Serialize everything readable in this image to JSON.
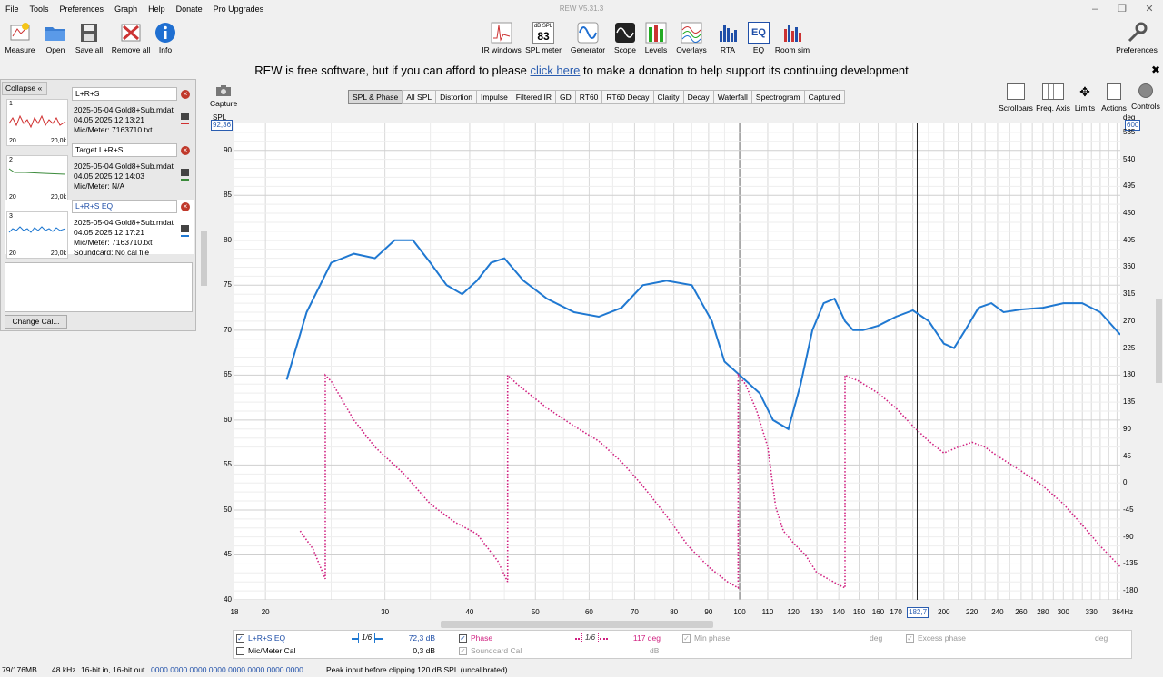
{
  "app_title": "REW V5.31.3",
  "menu": [
    "File",
    "Tools",
    "Preferences",
    "Graph",
    "Help",
    "Donate",
    "Pro Upgrades"
  ],
  "toolbar_left": [
    {
      "label": "Measure",
      "icon": "measure-icon"
    },
    {
      "label": "Open",
      "icon": "folder-icon"
    },
    {
      "label": "Save all",
      "icon": "save-icon"
    },
    {
      "label": "Remove all",
      "icon": "remove-all-icon"
    },
    {
      "label": "Info",
      "icon": "info-icon"
    }
  ],
  "toolbar_center": [
    {
      "label": "IR windows",
      "icon": "ir-windows-icon"
    },
    {
      "label": "SPL meter",
      "icon": "spl-meter-icon",
      "badge_top": "dB SPL",
      "badge_value": "83"
    },
    {
      "label": "Generator",
      "icon": "generator-icon"
    },
    {
      "label": "Scope",
      "icon": "scope-icon"
    },
    {
      "label": "Levels",
      "icon": "levels-icon"
    },
    {
      "label": "Overlays",
      "icon": "overlays-icon"
    },
    {
      "label": "RTA",
      "icon": "rta-icon"
    },
    {
      "label": "EQ",
      "icon": "eq-icon",
      "badge_value": "EQ"
    },
    {
      "label": "Room sim",
      "icon": "room-sim-icon"
    }
  ],
  "preferences_label": "Preferences",
  "donate": {
    "before": "REW is free software, but if you can afford to please ",
    "link": "click here",
    "after": " to make a donation to help support its continuing development"
  },
  "collapse_label": "Collapse",
  "collapse_glyph": "«",
  "measurements": [
    {
      "num": "1",
      "name": "L+R+S",
      "file": "2025-05-04 Gold8+Sub.mdat",
      "date": "04.05.2025 12:13:21",
      "mic": "Mic/Meter: 7163710.txt",
      "extra": "",
      "color": "#d03030",
      "thumb_min": "20",
      "thumb_max": "20,0k"
    },
    {
      "num": "2",
      "name": "Target L+R+S",
      "file": "2025-05-04 Gold8+Sub.mdat",
      "date": "04.05.2025 12:14:03",
      "mic": "Mic/Meter: N/A",
      "extra": "",
      "color": "#3a8a3a",
      "thumb_min": "20",
      "thumb_max": "20,0k"
    },
    {
      "num": "3",
      "name": "L+R+S EQ",
      "file": "2025-05-04 Gold8+Sub.mdat",
      "date": "04.05.2025 12:17:21",
      "mic": "Mic/Meter: 7163710.txt",
      "extra": "Soundcard: No cal file",
      "color": "#1f78d1",
      "thumb_min": "20",
      "thumb_max": "20,0k"
    }
  ],
  "change_cal_label": "Change Cal...",
  "capture_label": "Capture",
  "graph_tabs": [
    "SPL & Phase",
    "All SPL",
    "Distortion",
    "Impulse",
    "Filtered IR",
    "GD",
    "RT60",
    "RT60 Decay",
    "Clarity",
    "Decay",
    "Waterfall",
    "Spectrogram",
    "Captured"
  ],
  "active_tab": "SPL & Phase",
  "right_controls": [
    {
      "label": "Scrollbars",
      "icon": "scrollbars-icon"
    },
    {
      "label": "Freq. Axis",
      "icon": "freq-axis-icon"
    },
    {
      "label": "Limits",
      "icon": "limits-icon"
    },
    {
      "label": "Actions",
      "icon": "actions-icon"
    },
    {
      "label": "Controls",
      "icon": "controls-gear-icon"
    }
  ],
  "chart_data": {
    "type": "line",
    "y_left_label": "SPL",
    "y_right_label": "deg",
    "y_left_cursor": "92,36",
    "y_right_cursor": "600",
    "x_cursor": "182,7",
    "x_unit_label": "364Hz",
    "ylim": [
      40,
      93
    ],
    "y2lim": [
      -195,
      600
    ],
    "xlim": [
      18,
      364
    ],
    "x_scale": "log",
    "y_ticks": [
      90,
      85,
      80,
      75,
      70,
      65,
      60,
      55,
      50,
      45,
      40
    ],
    "y2_ticks": [
      585,
      540,
      495,
      450,
      405,
      360,
      315,
      270,
      225,
      180,
      135,
      90,
      45,
      0,
      -45,
      -90,
      -135,
      -180
    ],
    "x_ticks": [
      18,
      20,
      30,
      40,
      50,
      60,
      70,
      80,
      90,
      100,
      110,
      120,
      130,
      140,
      150,
      160,
      170,
      200,
      220,
      240,
      260,
      280,
      300,
      330
    ],
    "x_tick_labels": [
      "18",
      "20",
      "30",
      "40",
      "50",
      "60",
      "70",
      "80",
      "90",
      "100",
      "110",
      "120",
      "130",
      "140",
      "150",
      "160",
      "170",
      "200",
      "220",
      "240",
      "260",
      "280",
      "300",
      "330"
    ],
    "grid": true,
    "series": [
      {
        "name": "L+R+S EQ",
        "color": "#1f78d1",
        "style": "solid",
        "x": [
          21.5,
          23,
          25,
          27,
          29,
          31,
          33,
          35,
          37,
          39,
          41,
          43,
          45,
          48,
          52,
          57,
          62,
          67,
          72,
          78,
          85,
          91,
          95,
          100,
          107,
          112,
          118,
          123,
          128,
          133,
          138,
          143,
          147,
          152,
          160,
          170,
          180,
          190,
          200,
          207,
          215,
          225,
          235,
          245,
          260,
          280,
          300,
          320,
          340,
          364
        ],
        "y": [
          64.5,
          72,
          77.5,
          78.5,
          78,
          80,
          80,
          77.5,
          75,
          74,
          75.5,
          77.5,
          78,
          75.5,
          73.5,
          72,
          71.5,
          72.5,
          75,
          75.5,
          75,
          71,
          66.5,
          65,
          63,
          60,
          59,
          64,
          70,
          73,
          73.5,
          71,
          70,
          70,
          70.5,
          71.5,
          72.2,
          71,
          68.5,
          68,
          70,
          72.5,
          73,
          72,
          72.3,
          72.5,
          73,
          73,
          72,
          69.5
        ]
      },
      {
        "name": "Phase",
        "color": "#d02080",
        "style": "dotted",
        "x": [
          22.5,
          23.5,
          24.5,
          24.5,
          25,
          27,
          29,
          32,
          35,
          38,
          41,
          44,
          45.5,
          45.5,
          47,
          52,
          57,
          62,
          67,
          72,
          78,
          84,
          90,
          96,
          99.5,
          99.5,
          102,
          106,
          110,
          113,
          116,
          120,
          125,
          130,
          135,
          140,
          143,
          143,
          150,
          160,
          170,
          180,
          190,
          200,
          210,
          220,
          230,
          240,
          260,
          280,
          300,
          320,
          340,
          364
        ],
        "y": [
          -80,
          -110,
          -160,
          180,
          170,
          105,
          60,
          15,
          -35,
          -65,
          -85,
          -130,
          -165,
          180,
          165,
          125,
          95,
          70,
          35,
          -5,
          -55,
          -105,
          -140,
          -165,
          -175,
          180,
          165,
          120,
          60,
          -40,
          -80,
          -100,
          -120,
          -150,
          -160,
          -170,
          -175,
          180,
          170,
          150,
          125,
          95,
          70,
          50,
          60,
          68,
          60,
          45,
          20,
          -5,
          -35,
          -70,
          -105,
          -140
        ]
      }
    ]
  },
  "legend": {
    "row1": {
      "series": "L+R+S EQ",
      "smoothing": "1/6",
      "value": "72,3 dB",
      "phase_label": "Phase",
      "phase_smoothing": "1/6",
      "phase_value": "117 deg",
      "minphase_label": "Min phase",
      "minphase_unit": "deg",
      "excess_label": "Excess phase",
      "excess_unit": "deg"
    },
    "row2": {
      "miccal_label": "Mic/Meter Cal",
      "miccal_value": "0,3 dB",
      "soundcard_label": "Soundcard Cal",
      "soundcard_unit": "dB"
    }
  },
  "status": {
    "memory": "79/176MB",
    "rate": "48 kHz",
    "bits": "16-bit in, 16-bit out",
    "levels": "0000 0000  0000 0000  0000 0000  0000 0000",
    "peak": "Peak input before clipping 120 dB SPL (uncalibrated)"
  }
}
